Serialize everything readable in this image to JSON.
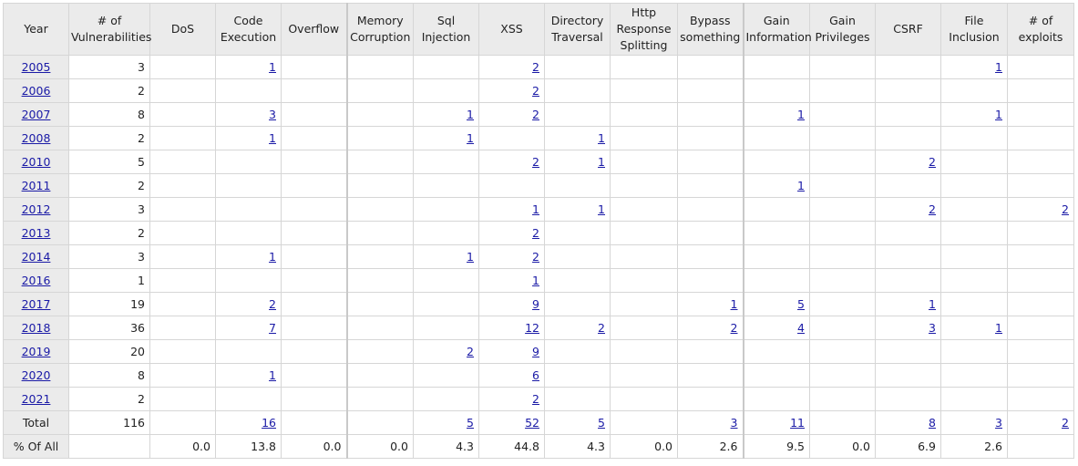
{
  "headers": [
    {
      "key": "year",
      "label": "Year"
    },
    {
      "key": "num_vulns",
      "label": "# of Vulnerabilities"
    },
    {
      "key": "dos",
      "label": "DoS"
    },
    {
      "key": "code_exec",
      "label": "Code Execution"
    },
    {
      "key": "overflow",
      "label": "Overflow"
    },
    {
      "key": "mem_corruption",
      "label": "Memory Corruption"
    },
    {
      "key": "sql_injection",
      "label": "Sql Injection"
    },
    {
      "key": "xss",
      "label": "XSS"
    },
    {
      "key": "dir_traversal",
      "label": "Directory Traversal"
    },
    {
      "key": "http_resp_split",
      "label": "Http Response Splitting"
    },
    {
      "key": "bypass",
      "label": "Bypass something"
    },
    {
      "key": "gain_info",
      "label": "Gain Information"
    },
    {
      "key": "gain_priv",
      "label": "Gain Privileges"
    },
    {
      "key": "csrf",
      "label": "CSRF"
    },
    {
      "key": "file_inclusion",
      "label": "File Inclusion"
    },
    {
      "key": "num_exploits",
      "label": "# of exploits"
    }
  ],
  "rows": [
    {
      "year": "2005",
      "cells": [
        "3",
        "",
        "1",
        "",
        "",
        "",
        "2",
        "",
        "",
        "",
        "",
        "",
        "",
        "1",
        ""
      ]
    },
    {
      "year": "2006",
      "cells": [
        "2",
        "",
        "",
        "",
        "",
        "",
        "2",
        "",
        "",
        "",
        "",
        "",
        "",
        "",
        ""
      ]
    },
    {
      "year": "2007",
      "cells": [
        "8",
        "",
        "3",
        "",
        "",
        "1",
        "2",
        "",
        "",
        "",
        "1",
        "",
        "",
        "1",
        ""
      ]
    },
    {
      "year": "2008",
      "cells": [
        "2",
        "",
        "1",
        "",
        "",
        "1",
        "",
        "1",
        "",
        "",
        "",
        "",
        "",
        "",
        ""
      ]
    },
    {
      "year": "2010",
      "cells": [
        "5",
        "",
        "",
        "",
        "",
        "",
        "2",
        "1",
        "",
        "",
        "",
        "",
        "2",
        "",
        ""
      ]
    },
    {
      "year": "2011",
      "cells": [
        "2",
        "",
        "",
        "",
        "",
        "",
        "",
        "",
        "",
        "",
        "1",
        "",
        "",
        "",
        ""
      ]
    },
    {
      "year": "2012",
      "cells": [
        "3",
        "",
        "",
        "",
        "",
        "",
        "1",
        "1",
        "",
        "",
        "",
        "",
        "2",
        "",
        "2"
      ]
    },
    {
      "year": "2013",
      "cells": [
        "2",
        "",
        "",
        "",
        "",
        "",
        "2",
        "",
        "",
        "",
        "",
        "",
        "",
        "",
        ""
      ]
    },
    {
      "year": "2014",
      "cells": [
        "3",
        "",
        "1",
        "",
        "",
        "1",
        "2",
        "",
        "",
        "",
        "",
        "",
        "",
        "",
        ""
      ]
    },
    {
      "year": "2016",
      "cells": [
        "1",
        "",
        "",
        "",
        "",
        "",
        "1",
        "",
        "",
        "",
        "",
        "",
        "",
        "",
        ""
      ]
    },
    {
      "year": "2017",
      "cells": [
        "19",
        "",
        "2",
        "",
        "",
        "",
        "9",
        "",
        "",
        "1",
        "5",
        "",
        "1",
        "",
        ""
      ]
    },
    {
      "year": "2018",
      "cells": [
        "36",
        "",
        "7",
        "",
        "",
        "",
        "12",
        "2",
        "",
        "2",
        "4",
        "",
        "3",
        "1",
        ""
      ]
    },
    {
      "year": "2019",
      "cells": [
        "20",
        "",
        "",
        "",
        "",
        "2",
        "9",
        "",
        "",
        "",
        "",
        "",
        "",
        "",
        ""
      ]
    },
    {
      "year": "2020",
      "cells": [
        "8",
        "",
        "1",
        "",
        "",
        "",
        "6",
        "",
        "",
        "",
        "",
        "",
        "",
        "",
        ""
      ]
    },
    {
      "year": "2021",
      "cells": [
        "2",
        "",
        "",
        "",
        "",
        "",
        "2",
        "",
        "",
        "",
        "",
        "",
        "",
        "",
        ""
      ]
    }
  ],
  "total_row": {
    "label": "Total",
    "cells": [
      "116",
      "",
      "16",
      "",
      "",
      "5",
      "52",
      "5",
      "",
      "3",
      "11",
      "",
      "8",
      "3",
      "2"
    ]
  },
  "percent_row": {
    "label": "% Of All",
    "cells": [
      "",
      "0.0",
      "13.8",
      "0.0",
      "0.0",
      "4.3",
      "44.8",
      "4.3",
      "0.0",
      "2.6",
      "9.5",
      "0.0",
      "6.9",
      "2.6",
      ""
    ]
  },
  "colors": {
    "header_bg": "#ebebeb",
    "link": "#1a1aa6",
    "border": "#d6d6d6"
  }
}
